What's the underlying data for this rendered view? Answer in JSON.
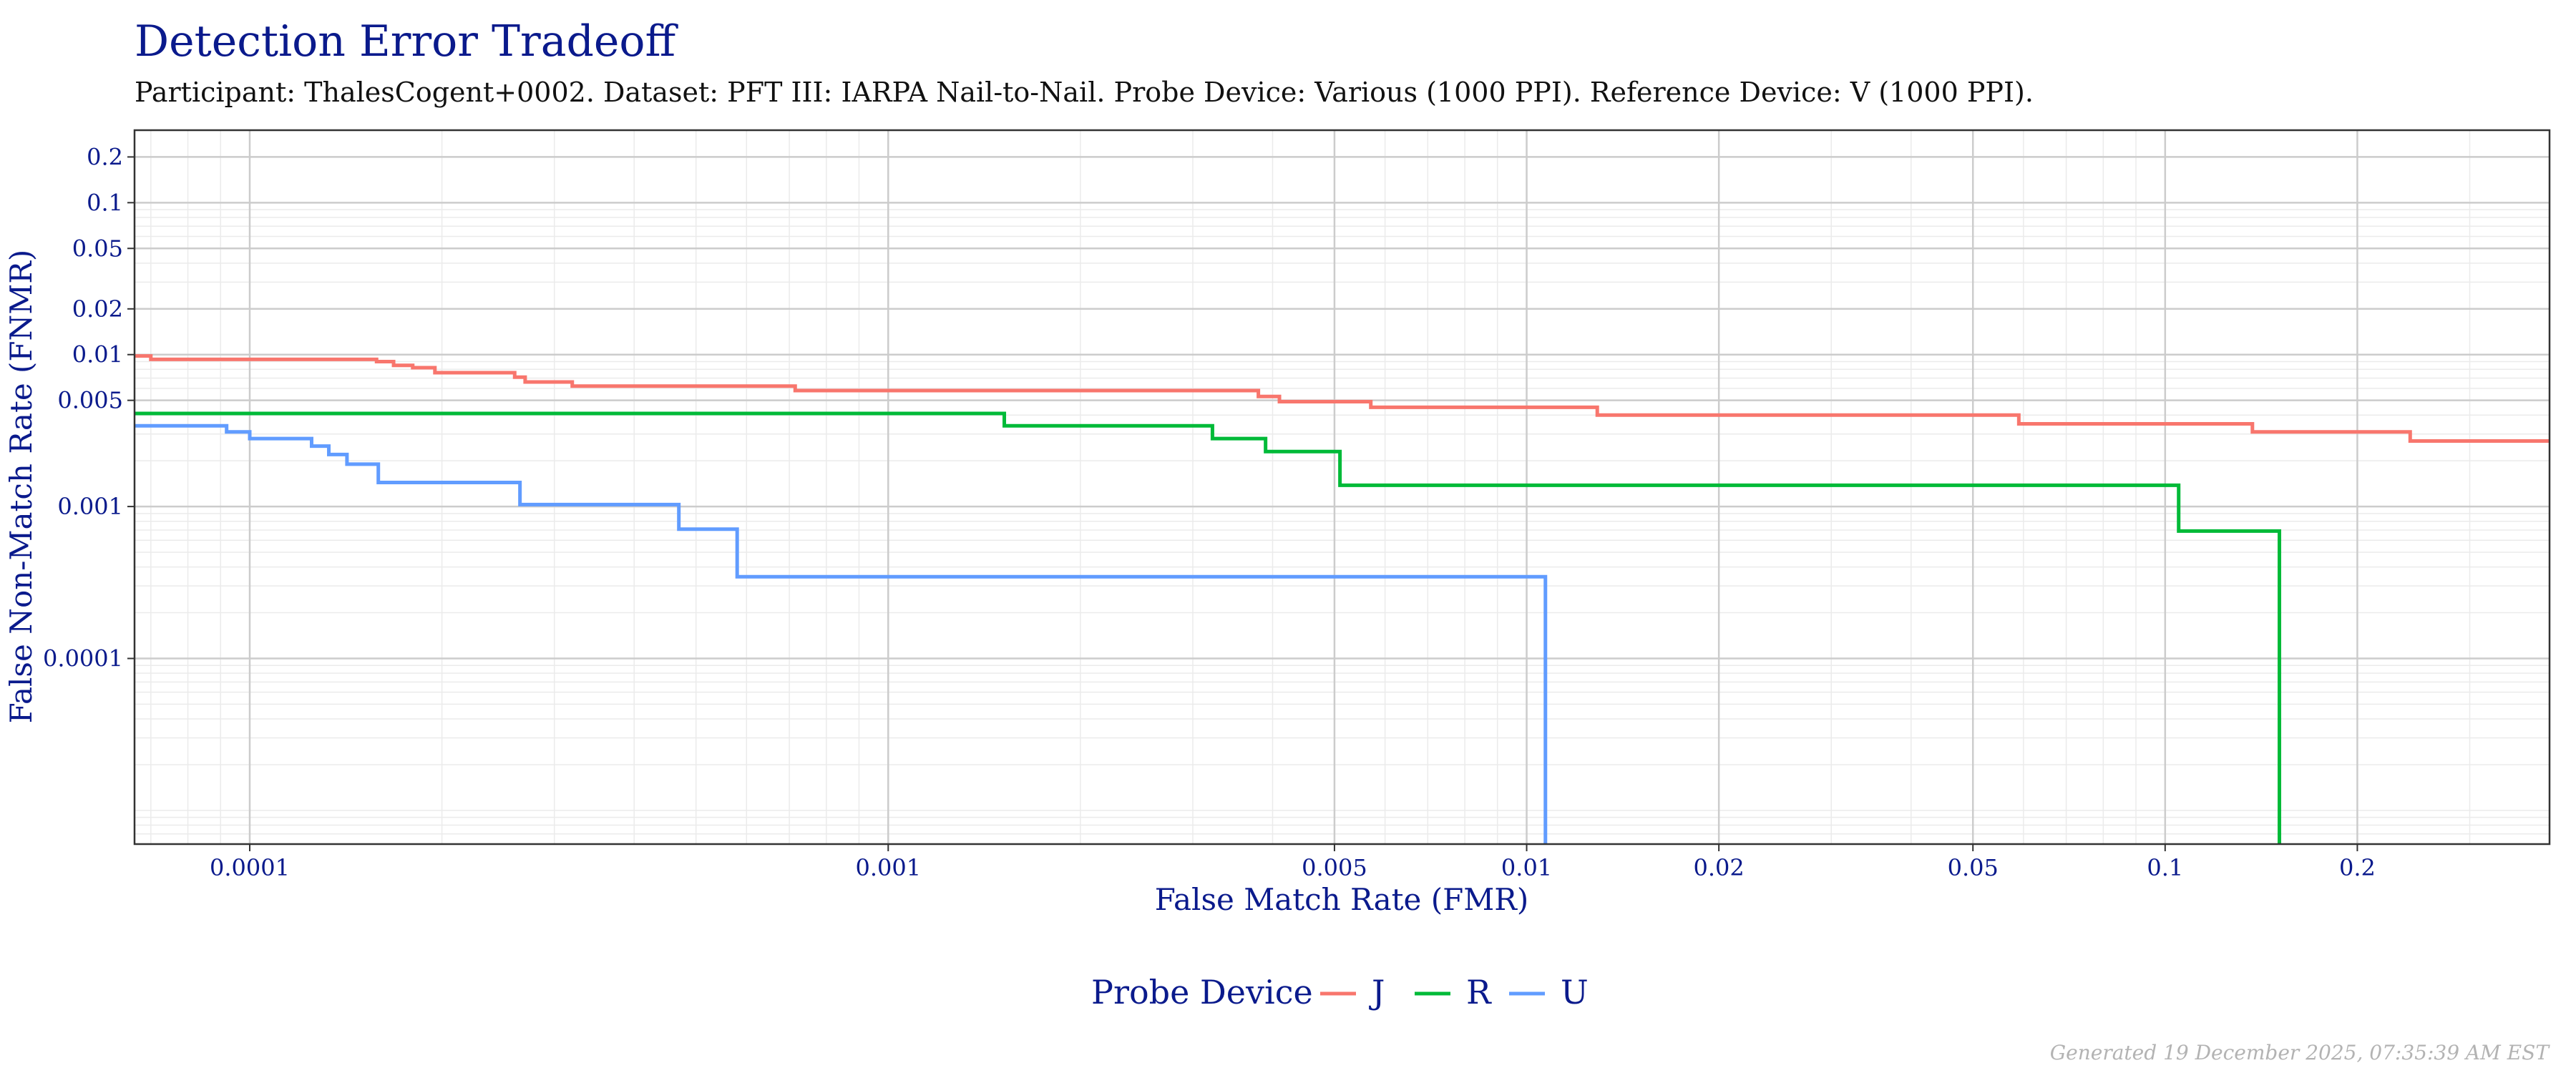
{
  "title": "Detection Error Tradeoff",
  "subtitle": "Participant: ThalesCogent+0002. Dataset: PFT III: IARPA Nail-to-Nail. Probe Device: Various (1000 PPI). Reference Device: V (1000 PPI).",
  "footer": "Generated 19 December 2025, 07:35:39 AM EST",
  "chart_data": {
    "type": "line",
    "step": true,
    "xlabel": "False Match Rate (FMR)",
    "ylabel": "False Non-Match Rate (FNMR)",
    "x_scale": "log",
    "y_scale": "log",
    "xlim": [
      6.6e-05,
      0.4
    ],
    "ylim": [
      6e-06,
      0.3
    ],
    "x_ticks": [
      {
        "value": 0.0001,
        "label": "0.0001"
      },
      {
        "value": 0.001,
        "label": "0.001"
      },
      {
        "value": 0.005,
        "label": "0.005"
      },
      {
        "value": 0.01,
        "label": "0.01"
      },
      {
        "value": 0.02,
        "label": "0.02"
      },
      {
        "value": 0.05,
        "label": "0.05"
      },
      {
        "value": 0.1,
        "label": "0.1"
      },
      {
        "value": 0.2,
        "label": "0.2"
      }
    ],
    "y_ticks": [
      {
        "value": 0.0001,
        "label": "0.0001"
      },
      {
        "value": 0.001,
        "label": "0.001"
      },
      {
        "value": 0.005,
        "label": "0.005"
      },
      {
        "value": 0.01,
        "label": "0.01"
      },
      {
        "value": 0.02,
        "label": "0.02"
      },
      {
        "value": 0.05,
        "label": "0.05"
      },
      {
        "value": 0.1,
        "label": "0.1"
      },
      {
        "value": 0.2,
        "label": "0.2"
      }
    ],
    "grid": true,
    "legend_title": "Probe Device",
    "legend_position": "bottom",
    "series": [
      {
        "name": "J",
        "color": "#f8766d",
        "points": [
          [
            6.6e-05,
            0.0098
          ],
          [
            7e-05,
            0.0098
          ],
          [
            7e-05,
            0.0093
          ],
          [
            0.000158,
            0.0093
          ],
          [
            0.000158,
            0.009
          ],
          [
            0.000168,
            0.009
          ],
          [
            0.000168,
            0.0085
          ],
          [
            0.00018,
            0.0085
          ],
          [
            0.00018,
            0.0082
          ],
          [
            0.000195,
            0.0082
          ],
          [
            0.000195,
            0.0076
          ],
          [
            0.00026,
            0.0076
          ],
          [
            0.00026,
            0.0071
          ],
          [
            0.00027,
            0.0071
          ],
          [
            0.00027,
            0.0066
          ],
          [
            0.00032,
            0.0066
          ],
          [
            0.00032,
            0.0062
          ],
          [
            0.000715,
            0.0062
          ],
          [
            0.000715,
            0.0058
          ],
          [
            0.0038,
            0.0058
          ],
          [
            0.0038,
            0.0053
          ],
          [
            0.0041,
            0.0053
          ],
          [
            0.0041,
            0.0049
          ],
          [
            0.0057,
            0.0049
          ],
          [
            0.0057,
            0.0045
          ],
          [
            0.0129,
            0.0045
          ],
          [
            0.0129,
            0.004
          ],
          [
            0.059,
            0.004
          ],
          [
            0.059,
            0.0035
          ],
          [
            0.137,
            0.0035
          ],
          [
            0.137,
            0.0031
          ],
          [
            0.242,
            0.0031
          ],
          [
            0.242,
            0.0027
          ],
          [
            0.4,
            0.0027
          ]
        ]
      },
      {
        "name": "R",
        "color": "#00ba38",
        "points": [
          [
            6.6e-05,
            0.0041
          ],
          [
            0.00152,
            0.0041
          ],
          [
            0.00152,
            0.0034
          ],
          [
            0.00322,
            0.0034
          ],
          [
            0.00322,
            0.0028
          ],
          [
            0.0039,
            0.0028
          ],
          [
            0.0039,
            0.0023
          ],
          [
            0.0051,
            0.0023
          ],
          [
            0.0051,
            0.00138
          ],
          [
            0.105,
            0.00138
          ],
          [
            0.105,
            0.00069
          ],
          [
            0.151,
            0.00069
          ],
          [
            0.151,
            6e-06
          ]
        ]
      },
      {
        "name": "U",
        "color": "#619cff",
        "points": [
          [
            6.6e-05,
            0.0034
          ],
          [
            9.2e-05,
            0.0034
          ],
          [
            9.2e-05,
            0.0031
          ],
          [
            0.0001,
            0.0031
          ],
          [
            0.0001,
            0.0028
          ],
          [
            0.000125,
            0.0028
          ],
          [
            0.000125,
            0.0025
          ],
          [
            0.000133,
            0.0025
          ],
          [
            0.000133,
            0.0022
          ],
          [
            0.000142,
            0.0022
          ],
          [
            0.000142,
            0.0019
          ],
          [
            0.000159,
            0.0019
          ],
          [
            0.000159,
            0.00144
          ],
          [
            0.000265,
            0.00144
          ],
          [
            0.000265,
            0.00103
          ],
          [
            0.00047,
            0.00103
          ],
          [
            0.00047,
            0.00071
          ],
          [
            0.00058,
            0.00071
          ],
          [
            0.00058,
            0.000345
          ],
          [
            0.0107,
            0.000345
          ],
          [
            0.0107,
            6e-06
          ]
        ]
      }
    ]
  }
}
